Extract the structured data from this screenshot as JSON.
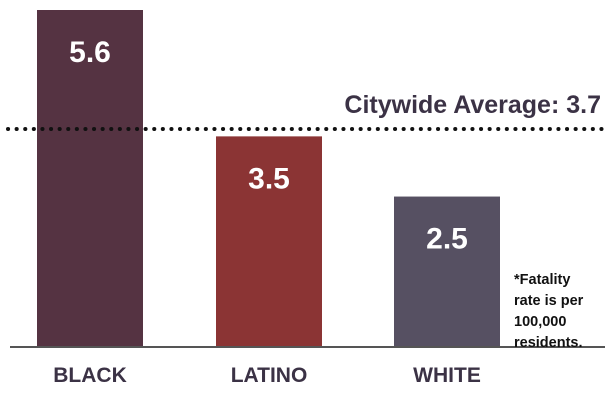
{
  "chart_data": {
    "type": "bar",
    "categories": [
      "BLACK",
      "LATINO",
      "WHITE"
    ],
    "values": [
      5.6,
      3.5,
      2.5
    ],
    "value_labels": [
      "5.6",
      "3.5",
      "2.5"
    ],
    "bar_colors": [
      "#553342",
      "#8b3434",
      "#565062"
    ],
    "ylim": [
      0,
      5.6
    ],
    "grid": false,
    "reference_line": {
      "label": "Citywide Average:  3.7",
      "value": 3.7,
      "style": "dotted",
      "color": "#111111"
    },
    "footnote_lines": [
      "*Fatality",
      "rate is per",
      "100,000",
      "residents."
    ],
    "text_color": "#3b3245",
    "axis_color": "#555555"
  }
}
